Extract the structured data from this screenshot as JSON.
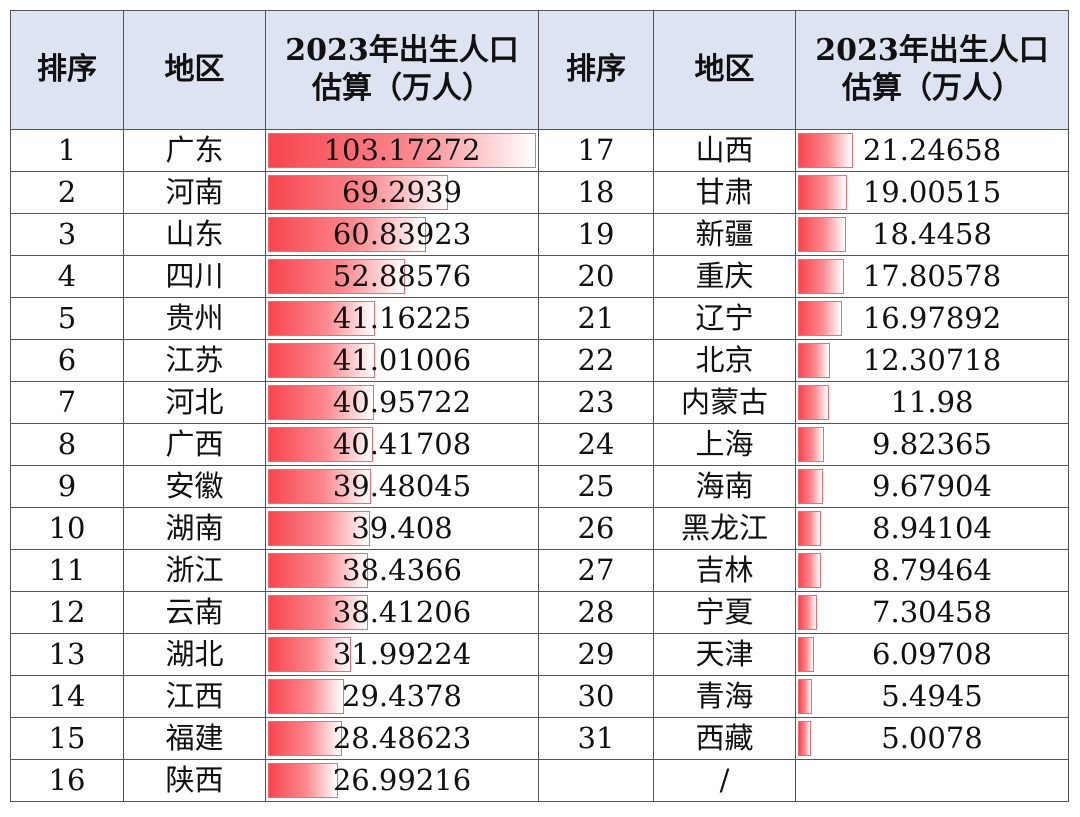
{
  "headers": {
    "rank": "排序",
    "region": "地区",
    "value_line1": "2023年出生人口",
    "value_line2": "估算（万人）"
  },
  "bar_color": "#f7454e",
  "max_value": 103.17272,
  "left_rows": [
    {
      "rank": "1",
      "region": "广东",
      "value": "103.17272"
    },
    {
      "rank": "2",
      "region": "河南",
      "value": "69.2939"
    },
    {
      "rank": "3",
      "region": "山东",
      "value": "60.83923"
    },
    {
      "rank": "4",
      "region": "四川",
      "value": "52.88576"
    },
    {
      "rank": "5",
      "region": "贵州",
      "value": "41.16225"
    },
    {
      "rank": "6",
      "region": "江苏",
      "value": "41.01006"
    },
    {
      "rank": "7",
      "region": "河北",
      "value": "40.95722"
    },
    {
      "rank": "8",
      "region": "广西",
      "value": "40.41708"
    },
    {
      "rank": "9",
      "region": "安徽",
      "value": "39.48045"
    },
    {
      "rank": "10",
      "region": "湖南",
      "value": "39.408"
    },
    {
      "rank": "11",
      "region": "浙江",
      "value": "38.4366"
    },
    {
      "rank": "12",
      "region": "云南",
      "value": "38.41206"
    },
    {
      "rank": "13",
      "region": "湖北",
      "value": "31.99224"
    },
    {
      "rank": "14",
      "region": "江西",
      "value": "29.4378"
    },
    {
      "rank": "15",
      "region": "福建",
      "value": "28.48623"
    },
    {
      "rank": "16",
      "region": "陕西",
      "value": "26.99216"
    }
  ],
  "right_rows": [
    {
      "rank": "17",
      "region": "山西",
      "value": "21.24658"
    },
    {
      "rank": "18",
      "region": "甘肃",
      "value": "19.00515"
    },
    {
      "rank": "19",
      "region": "新疆",
      "value": "18.4458"
    },
    {
      "rank": "20",
      "region": "重庆",
      "value": "17.80578"
    },
    {
      "rank": "21",
      "region": "辽宁",
      "value": "16.97892"
    },
    {
      "rank": "22",
      "region": "北京",
      "value": "12.30718"
    },
    {
      "rank": "23",
      "region": "内蒙古",
      "value": "11.98"
    },
    {
      "rank": "24",
      "region": "上海",
      "value": "9.82365"
    },
    {
      "rank": "25",
      "region": "海南",
      "value": "9.67904"
    },
    {
      "rank": "26",
      "region": "黑龙江",
      "value": "8.94104"
    },
    {
      "rank": "27",
      "region": "吉林",
      "value": "8.79464"
    },
    {
      "rank": "28",
      "region": "宁夏",
      "value": "7.30458"
    },
    {
      "rank": "29",
      "region": "天津",
      "value": "6.09708"
    },
    {
      "rank": "30",
      "region": "青海",
      "value": "5.4945"
    },
    {
      "rank": "31",
      "region": "西藏",
      "value": "5.0078"
    },
    {
      "rank": "",
      "region": "/",
      "value": ""
    }
  ]
}
